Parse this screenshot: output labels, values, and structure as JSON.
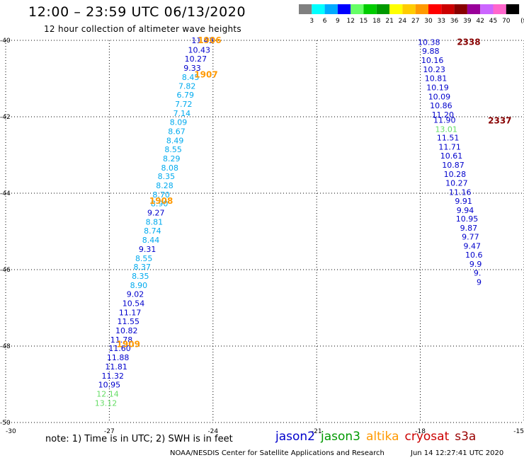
{
  "header": {
    "title": "12:00 – 23:59 UTC 06/13/2020",
    "subtitle": "12 hour collection of altimeter wave heights"
  },
  "colorbar": {
    "unit": "(ft)",
    "entries": [
      {
        "label": "3",
        "color": "#808080"
      },
      {
        "label": "6",
        "color": "#00ffff"
      },
      {
        "label": "9",
        "color": "#00aaff"
      },
      {
        "label": "12",
        "color": "#0000ff"
      },
      {
        "label": "15",
        "color": "#66ff66"
      },
      {
        "label": "18",
        "color": "#00cc00"
      },
      {
        "label": "21",
        "color": "#009900"
      },
      {
        "label": "24",
        "color": "#ffff00"
      },
      {
        "label": "27",
        "color": "#ffcc00"
      },
      {
        "label": "30",
        "color": "#ff9900"
      },
      {
        "label": "33",
        "color": "#ff0000"
      },
      {
        "label": "36",
        "color": "#cc0000"
      },
      {
        "label": "39",
        "color": "#880000"
      },
      {
        "label": "42",
        "color": "#990099"
      },
      {
        "label": "45",
        "color": "#cc66ff"
      },
      {
        "label": "70",
        "color": "#ff66cc"
      },
      {
        "label": "",
        "color": "#000000"
      }
    ]
  },
  "chart_data": {
    "type": "scatter",
    "title": "12:00 – 23:59 UTC 06/13/2020",
    "subtitle": "12 hour collection of altimeter wave heights",
    "xlim": [
      -30,
      -15
    ],
    "ylim": [
      -50,
      -40
    ],
    "x_ticks": [
      -30,
      -27,
      -24,
      -21,
      -18,
      -15
    ],
    "y_ticks": [
      -40,
      -42,
      -44,
      -46,
      -48,
      -50
    ],
    "x_tick_labels": [
      "-30",
      "-27",
      "-24",
      "-21",
      "-18",
      "-15"
    ],
    "y_tick_labels": [
      "-40",
      "-42",
      "-44",
      "-46",
      "-48",
      "-50"
    ],
    "grid": true,
    "series": [
      {
        "name": "jason2",
        "points": [
          {
            "x": -24.3,
            "y": -40.0,
            "v": "11.43",
            "c": "#0000cc"
          },
          {
            "x": -24.4,
            "y": -40.25,
            "v": "10.43",
            "c": "#0000cc"
          },
          {
            "x": -24.5,
            "y": -40.48,
            "v": "10.27",
            "c": "#0000cc"
          },
          {
            "x": -24.6,
            "y": -40.72,
            "v": "9.33",
            "c": "#0000cc"
          },
          {
            "x": -24.65,
            "y": -40.96,
            "v": "8.45",
            "c": "#00aaee"
          },
          {
            "x": -24.75,
            "y": -41.19,
            "v": "7.82",
            "c": "#00aaee"
          },
          {
            "x": -24.8,
            "y": -41.43,
            "v": "6.79",
            "c": "#00aaee"
          },
          {
            "x": -24.85,
            "y": -41.67,
            "v": "7.72",
            "c": "#00aaee"
          },
          {
            "x": -24.9,
            "y": -41.91,
            "v": "7.14",
            "c": "#00aaee"
          },
          {
            "x": -25.0,
            "y": -42.14,
            "v": "8.09",
            "c": "#00aaee"
          },
          {
            "x": -25.05,
            "y": -42.38,
            "v": "8.67",
            "c": "#00aaee"
          },
          {
            "x": -25.1,
            "y": -42.62,
            "v": "8.49",
            "c": "#00aaee"
          },
          {
            "x": -25.15,
            "y": -42.85,
            "v": "8.55",
            "c": "#00aaee"
          },
          {
            "x": -25.2,
            "y": -43.09,
            "v": "8.29",
            "c": "#00aaee"
          },
          {
            "x": -25.25,
            "y": -43.33,
            "v": "8.08",
            "c": "#00aaee"
          },
          {
            "x": -25.35,
            "y": -43.56,
            "v": "8.35",
            "c": "#00aaee"
          },
          {
            "x": -25.4,
            "y": -43.8,
            "v": "8.28",
            "c": "#00aaee"
          },
          {
            "x": -25.5,
            "y": -44.04,
            "v": "8.70",
            "c": "#00aaee"
          },
          {
            "x": -25.55,
            "y": -44.27,
            "v": "8.90",
            "c": "#00aaee"
          },
          {
            "x": -25.65,
            "y": -44.51,
            "v": "9.27",
            "c": "#0000cc"
          },
          {
            "x": -25.7,
            "y": -44.75,
            "v": "8.81",
            "c": "#00aaee"
          },
          {
            "x": -25.75,
            "y": -44.98,
            "v": "8.74",
            "c": "#00aaee"
          },
          {
            "x": -25.8,
            "y": -45.22,
            "v": "8.44",
            "c": "#00aaee"
          },
          {
            "x": -25.9,
            "y": -45.46,
            "v": "9.31",
            "c": "#0000cc"
          },
          {
            "x": -26.0,
            "y": -45.7,
            "v": "8.55",
            "c": "#00aaee"
          },
          {
            "x": -26.05,
            "y": -45.93,
            "v": "8.37",
            "c": "#00aaee"
          },
          {
            "x": -26.1,
            "y": -46.17,
            "v": "8.35",
            "c": "#00aaee"
          },
          {
            "x": -26.15,
            "y": -46.41,
            "v": "8.90",
            "c": "#00aaee"
          },
          {
            "x": -26.25,
            "y": -46.64,
            "v": "9.02",
            "c": "#0000cc"
          },
          {
            "x": -26.3,
            "y": -46.88,
            "v": "10.54",
            "c": "#0000cc"
          },
          {
            "x": -26.4,
            "y": -47.12,
            "v": "11.17",
            "c": "#0000cc"
          },
          {
            "x": -26.45,
            "y": -47.35,
            "v": "11.55",
            "c": "#0000cc"
          },
          {
            "x": -26.5,
            "y": -47.59,
            "v": "10.82",
            "c": "#0000cc"
          },
          {
            "x": -26.65,
            "y": -47.83,
            "v": "11.78",
            "c": "#0000cc"
          },
          {
            "x": -26.7,
            "y": -48.06,
            "v": "11.60",
            "c": "#0000cc"
          },
          {
            "x": -26.75,
            "y": -48.3,
            "v": "11.88",
            "c": "#0000cc"
          },
          {
            "x": -26.8,
            "y": -48.54,
            "v": "11.81",
            "c": "#0000cc"
          },
          {
            "x": -26.9,
            "y": -48.78,
            "v": "11.32",
            "c": "#0000cc"
          },
          {
            "x": -27.0,
            "y": -49.01,
            "v": "10.95",
            "c": "#0000cc"
          },
          {
            "x": -27.05,
            "y": -49.25,
            "v": "12.14",
            "c": "#66dd66"
          },
          {
            "x": -27.1,
            "y": -49.49,
            "v": "13.12",
            "c": "#66dd66"
          }
        ],
        "passes": [
          {
            "x": -24.1,
            "y": -40.0,
            "label": "1906",
            "c": "#ff9900"
          },
          {
            "x": -24.2,
            "y": -40.9,
            "label": "1907",
            "c": "#ff9900"
          },
          {
            "x": -25.5,
            "y": -44.2,
            "label": "1908",
            "c": "#ff9900"
          },
          {
            "x": -26.45,
            "y": -47.95,
            "label": "1909",
            "c": "#ff9900"
          }
        ]
      },
      {
        "name": "cryosat",
        "points": [
          {
            "x": -17.75,
            "y": -40.05,
            "v": "10.38",
            "c": "#0000cc"
          },
          {
            "x": -17.7,
            "y": -40.28,
            "v": "9.88",
            "c": "#0000cc"
          },
          {
            "x": -17.65,
            "y": -40.52,
            "v": "10.16",
            "c": "#0000cc"
          },
          {
            "x": -17.6,
            "y": -40.76,
            "v": "10.23",
            "c": "#0000cc"
          },
          {
            "x": -17.55,
            "y": -40.99,
            "v": "10.81",
            "c": "#0000cc"
          },
          {
            "x": -17.5,
            "y": -41.23,
            "v": "10.19",
            "c": "#0000cc"
          },
          {
            "x": -17.45,
            "y": -41.47,
            "v": "10.09",
            "c": "#0000cc"
          },
          {
            "x": -17.4,
            "y": -41.7,
            "v": "10.86",
            "c": "#0000cc"
          },
          {
            "x": -17.35,
            "y": -41.94,
            "v": "11.20",
            "c": "#0000cc"
          },
          {
            "x": -17.3,
            "y": -42.08,
            "v": "11.90",
            "c": "#0000cc"
          },
          {
            "x": -17.25,
            "y": -42.32,
            "v": "13.01",
            "c": "#66dd66"
          },
          {
            "x": -17.2,
            "y": -42.55,
            "v": "11.51",
            "c": "#0000cc"
          },
          {
            "x": -17.15,
            "y": -42.79,
            "v": "11.71",
            "c": "#0000cc"
          },
          {
            "x": -17.1,
            "y": -43.02,
            "v": "10.61",
            "c": "#0000cc"
          },
          {
            "x": -17.05,
            "y": -43.26,
            "v": "10.87",
            "c": "#0000cc"
          },
          {
            "x": -17.0,
            "y": -43.5,
            "v": "10.28",
            "c": "#0000cc"
          },
          {
            "x": -16.95,
            "y": -43.73,
            "v": "10.27",
            "c": "#0000cc"
          },
          {
            "x": -16.85,
            "y": -43.97,
            "v": "11.16",
            "c": "#0000cc"
          },
          {
            "x": -16.75,
            "y": -44.2,
            "v": "9.91",
            "c": "#0000cc"
          },
          {
            "x": -16.7,
            "y": -44.44,
            "v": "9.94",
            "c": "#0000cc"
          },
          {
            "x": -16.65,
            "y": -44.67,
            "v": "10.95",
            "c": "#0000cc"
          },
          {
            "x": -16.6,
            "y": -44.91,
            "v": "9.87",
            "c": "#0000cc"
          },
          {
            "x": -16.55,
            "y": -45.14,
            "v": "9.77",
            "c": "#0000cc"
          },
          {
            "x": -16.5,
            "y": -45.38,
            "v": "9.47",
            "c": "#0000cc"
          },
          {
            "x": -16.45,
            "y": -45.61,
            "v": "10.6",
            "c": "#0000cc"
          },
          {
            "x": -16.4,
            "y": -45.85,
            "v": "9.9",
            "c": "#0000cc"
          },
          {
            "x": -16.35,
            "y": -46.08,
            "v": "9.",
            "c": "#0000cc"
          },
          {
            "x": -16.3,
            "y": -46.32,
            "v": "9",
            "c": "#0000cc"
          }
        ],
        "passes": [
          {
            "x": -16.6,
            "y": -40.05,
            "label": "2338",
            "c": "#880000"
          },
          {
            "x": -15.7,
            "y": -42.1,
            "label": "2337",
            "c": "#880000"
          }
        ]
      }
    ],
    "legend": [
      {
        "name": "jason2",
        "color": "#0000cc"
      },
      {
        "name": "jason3",
        "color": "#009900"
      },
      {
        "name": "altika",
        "color": "#ff9900"
      },
      {
        "name": "cryosat",
        "color": "#cc0000"
      },
      {
        "name": "s3a",
        "color": "#990000"
      }
    ]
  },
  "note": "note: 1) Time is in UTC; 2) SWH is in feet",
  "footer": {
    "agency": "NOAA/NESDIS Center for Satellite Applications and Research",
    "timestamp": "Jun 14 12:27:41 UTC 2020"
  }
}
